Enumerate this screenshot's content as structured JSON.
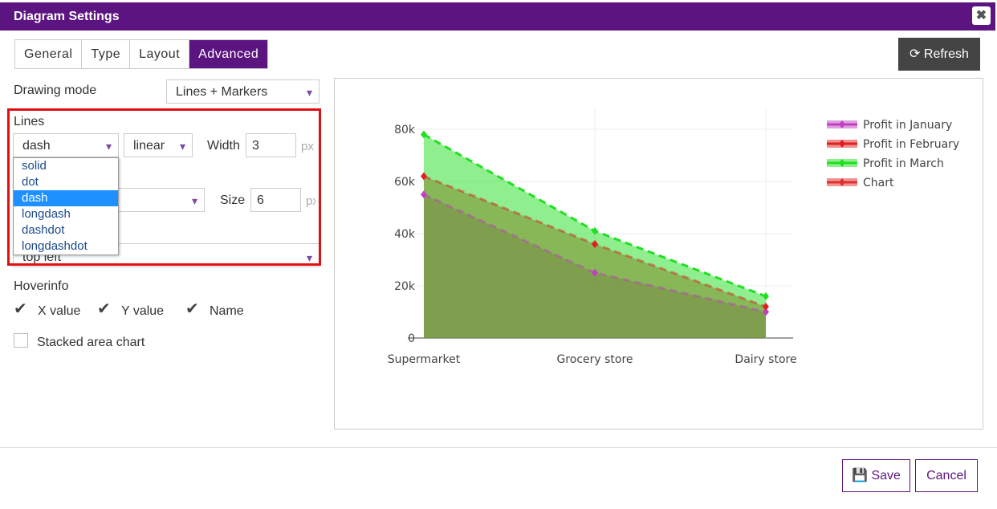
{
  "dialog": {
    "title": "Diagram Settings"
  },
  "tabs": [
    {
      "label": "General",
      "active": false
    },
    {
      "label": "Type",
      "active": false
    },
    {
      "label": "Layout",
      "active": false
    },
    {
      "label": "Advanced",
      "active": true
    }
  ],
  "refresh": "Refresh",
  "form": {
    "drawing_mode_label": "Drawing mode",
    "drawing_mode": "Lines + Markers",
    "lines_label": "Lines",
    "line_dash": "dash",
    "line_shape": "linear",
    "width_label": "Width",
    "width": 3,
    "width_unit": "px",
    "dash_options": [
      {
        "label": "solid",
        "selected": false
      },
      {
        "label": "dot",
        "selected": false
      },
      {
        "label": "dash",
        "selected": true
      },
      {
        "label": "longdash",
        "selected": false
      },
      {
        "label": "dashdot",
        "selected": false
      },
      {
        "label": "longdashdot",
        "selected": false
      }
    ],
    "size_label": "Size",
    "size": 6,
    "size_unit": "px",
    "legend_position": "top left",
    "hoverinfo_label": "Hoverinfo",
    "hoverinfo": [
      {
        "label": "X value",
        "checked": true
      },
      {
        "label": "Y value",
        "checked": true
      },
      {
        "label": "Name",
        "checked": true
      }
    ],
    "stacked": {
      "label": "Stacked area chart",
      "checked": false
    }
  },
  "save": "Save",
  "cancel": "Cancel",
  "chart_data": {
    "type": "area",
    "categories": [
      "Supermarket",
      "Grocery store",
      "Dairy store"
    ],
    "series": [
      {
        "name": "Profit in January",
        "color": "#c040c0",
        "values": [
          55000,
          25000,
          10000
        ]
      },
      {
        "name": "Profit in February",
        "color": "#e02020",
        "values": [
          62000,
          36000,
          12000
        ]
      },
      {
        "name": "Profit in March",
        "color": "#20e020",
        "values": [
          78000,
          41000,
          16000
        ]
      },
      {
        "name": "Chart",
        "color": "#e03030",
        "values": [
          null,
          null,
          null
        ]
      }
    ],
    "ylim": [
      0,
      88000
    ],
    "yticks": [
      0,
      {
        "value": 20000,
        "label": "20k"
      },
      {
        "value": 40000,
        "label": "40k"
      },
      {
        "value": 60000,
        "label": "60k"
      },
      {
        "value": 80000,
        "label": "80k"
      }
    ],
    "line_dash": "dash",
    "grid": true,
    "legend": "top right"
  }
}
